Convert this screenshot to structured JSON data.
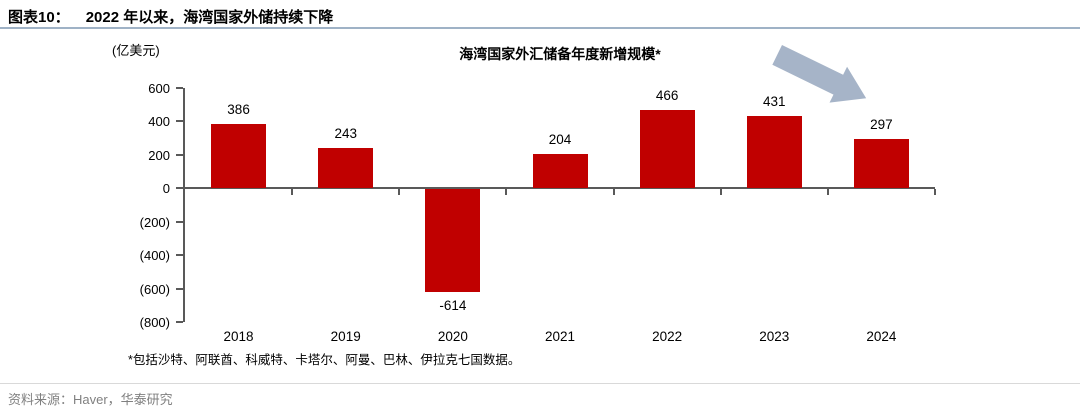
{
  "header": {
    "figure_label": "图表10：",
    "title": "2022 年以来，海湾国家外储持续下降"
  },
  "chart_data": {
    "type": "bar",
    "title": "海湾国家外汇储备年度新增规模*",
    "unit_label": "(亿美元)",
    "categories": [
      "2018",
      "2019",
      "2020",
      "2021",
      "2022",
      "2023",
      "2024"
    ],
    "values": [
      386,
      243,
      -614,
      204,
      466,
      431,
      297
    ],
    "value_labels": [
      "386",
      "243",
      "-614",
      "204",
      "466",
      "431",
      "297"
    ],
    "ylim": [
      -800,
      600
    ],
    "y_ticks": [
      {
        "label": "600",
        "value": 600
      },
      {
        "label": "400",
        "value": 400
      },
      {
        "label": "200",
        "value": 200
      },
      {
        "label": "0",
        "value": 0
      },
      {
        "label": "(200)",
        "value": -200
      },
      {
        "label": "(400)",
        "value": -400
      },
      {
        "label": "(600)",
        "value": -600
      },
      {
        "label": "(800)",
        "value": -800
      }
    ],
    "grid": false,
    "legend": "none",
    "footnote": "*包括沙特、阿联酋、科威特、卡塔尔、阿曼、巴林、伊拉克七国数据。",
    "annotation": {
      "icon": "arrow-down-right",
      "color": "#a6b4c8"
    }
  },
  "colors": {
    "bar": "#c00000",
    "axis": "#595959",
    "header_rule": "#9fb2c6",
    "footer_rule": "#d9d9d9",
    "source_text": "#808080"
  },
  "footer": {
    "source": "资料来源：Haver，华泰研究"
  }
}
